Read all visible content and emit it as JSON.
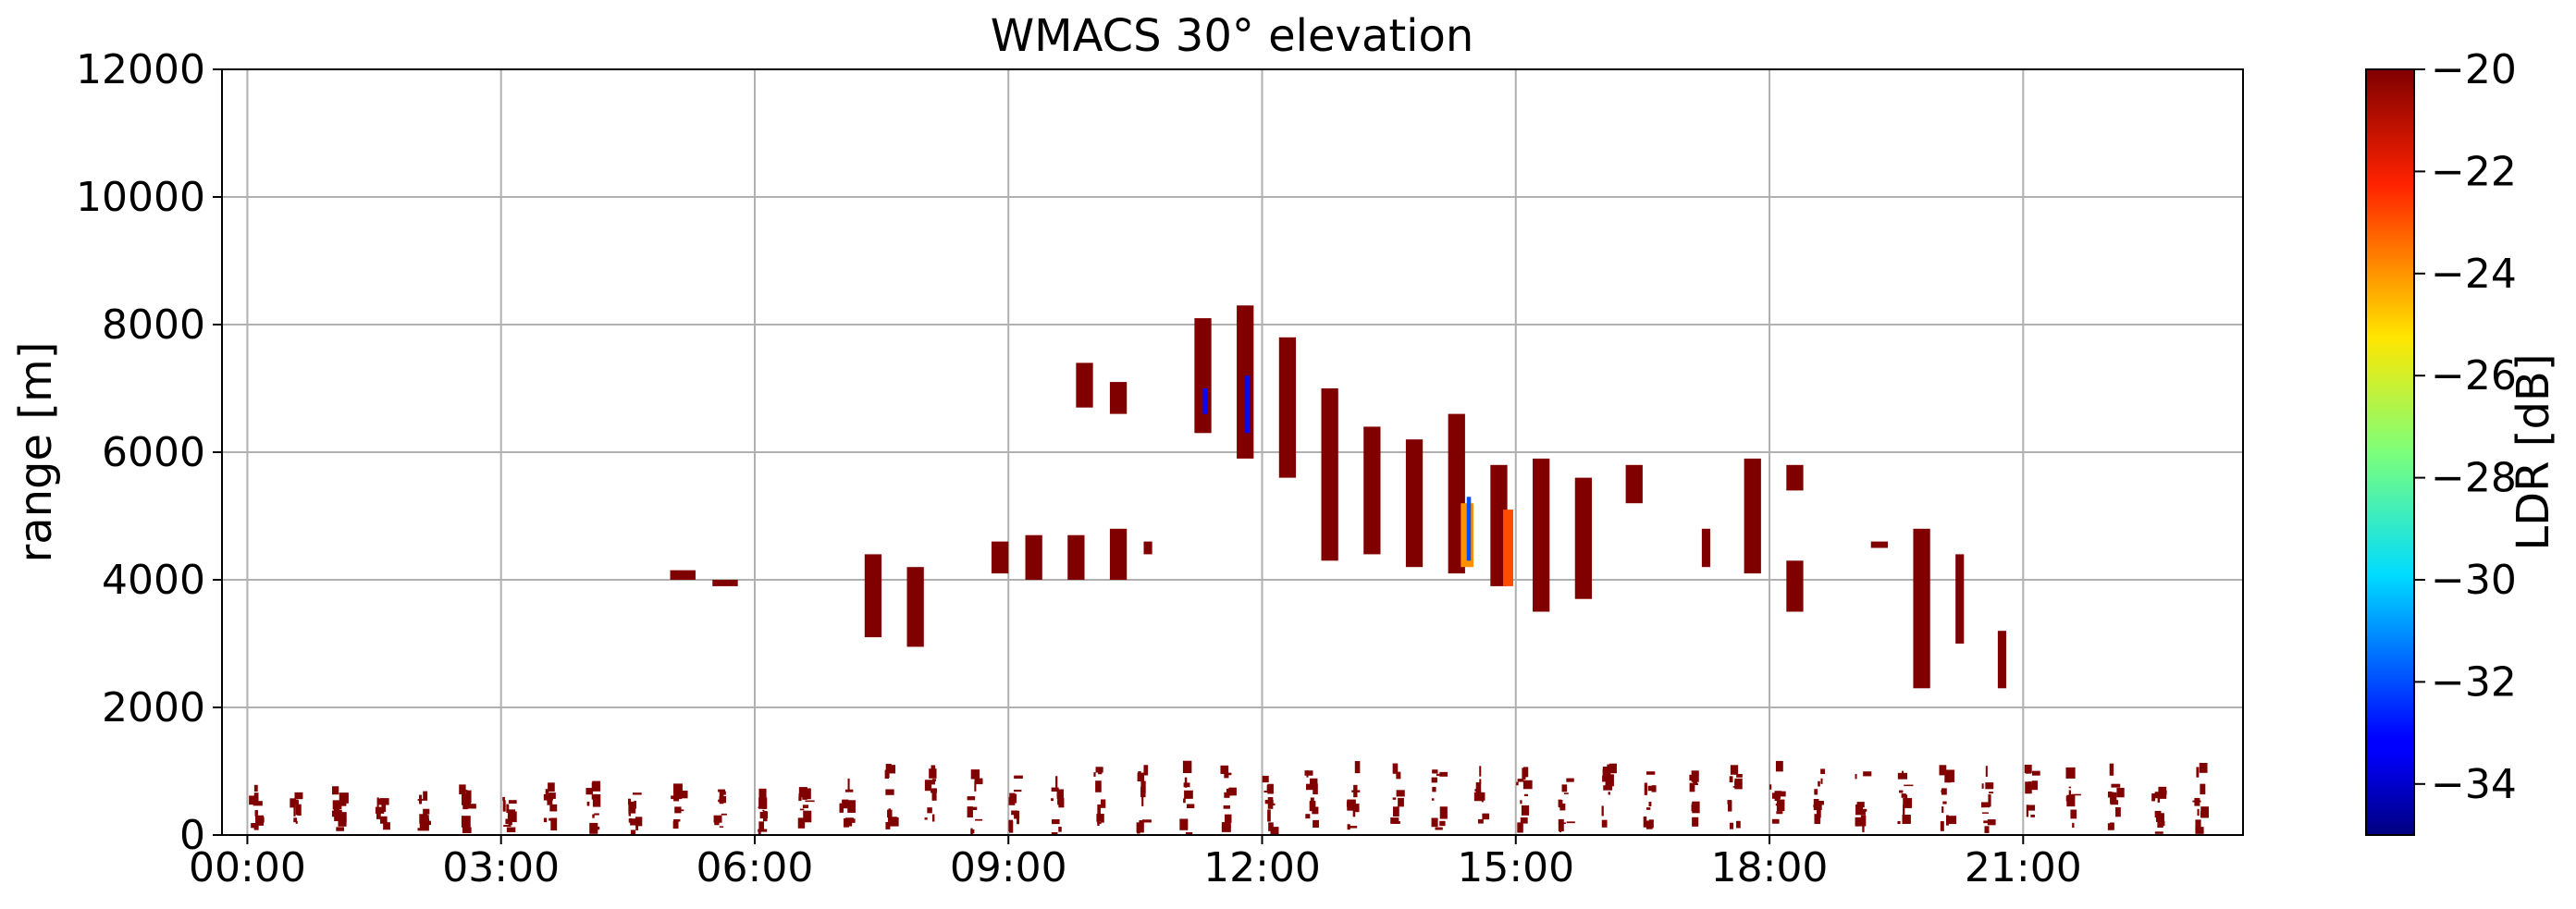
{
  "chart_data": {
    "type": "heatmap",
    "title": "WMACS 30° elevation",
    "xlabel": "",
    "ylabel": "range [m]",
    "x_ticks": [
      "00:00",
      "03:00",
      "06:00",
      "09:00",
      "12:00",
      "15:00",
      "18:00",
      "21:00"
    ],
    "x_tick_hours": [
      0,
      3,
      6,
      9,
      12,
      15,
      18,
      21
    ],
    "xlim_hours": [
      -0.3,
      23.6
    ],
    "y_ticks": [
      "0",
      "2000",
      "4000",
      "6000",
      "8000",
      "10000",
      "12000"
    ],
    "y_tick_values": [
      0,
      2000,
      4000,
      6000,
      8000,
      10000,
      12000
    ],
    "ylim": [
      0,
      12000
    ],
    "grid": true,
    "colorbar": {
      "label": "LDR [dB]",
      "colormap": "jet",
      "range": [
        -35,
        -20
      ],
      "ticks": [
        "−20",
        "−22",
        "−24",
        "−26",
        "−28",
        "−30",
        "−32",
        "−34"
      ],
      "tick_values": [
        -20,
        -22,
        -24,
        -26,
        -28,
        -30,
        -32,
        -34
      ]
    },
    "dominant_color": "#800000",
    "echo_regions": [
      {
        "t0": 5.0,
        "t1": 5.3,
        "r0": 4000,
        "r1": 4150,
        "ldr": -20
      },
      {
        "t0": 5.5,
        "t1": 5.8,
        "r0": 3900,
        "r1": 4000,
        "ldr": -20
      },
      {
        "t0": 7.3,
        "t1": 7.5,
        "r0": 3100,
        "r1": 4400,
        "ldr": -20
      },
      {
        "t0": 7.8,
        "t1": 8.0,
        "r0": 2950,
        "r1": 4200,
        "ldr": -20
      },
      {
        "t0": 8.8,
        "t1": 9.0,
        "r0": 4100,
        "r1": 4600,
        "ldr": -20
      },
      {
        "t0": 9.2,
        "t1": 9.4,
        "r0": 4000,
        "r1": 4700,
        "ldr": -20
      },
      {
        "t0": 9.7,
        "t1": 9.9,
        "r0": 4000,
        "r1": 4700,
        "ldr": -20
      },
      {
        "t0": 10.2,
        "t1": 10.4,
        "r0": 4000,
        "r1": 4800,
        "ldr": -20
      },
      {
        "t0": 10.6,
        "t1": 10.7,
        "r0": 4400,
        "r1": 4600,
        "ldr": -20
      },
      {
        "t0": 9.8,
        "t1": 10.0,
        "r0": 6700,
        "r1": 7400,
        "ldr": -20
      },
      {
        "t0": 10.2,
        "t1": 10.4,
        "r0": 6600,
        "r1": 7100,
        "ldr": -20
      },
      {
        "t0": 11.2,
        "t1": 11.4,
        "r0": 6300,
        "r1": 8100,
        "ldr": -20
      },
      {
        "t0": 11.7,
        "t1": 11.9,
        "r0": 5900,
        "r1": 8300,
        "ldr": -20
      },
      {
        "t0": 12.2,
        "t1": 12.4,
        "r0": 5600,
        "r1": 7800,
        "ldr": -20
      },
      {
        "t0": 12.7,
        "t1": 12.9,
        "r0": 4300,
        "r1": 7000,
        "ldr": -20
      },
      {
        "t0": 13.2,
        "t1": 13.4,
        "r0": 4400,
        "r1": 6400,
        "ldr": -20
      },
      {
        "t0": 13.7,
        "t1": 13.9,
        "r0": 4200,
        "r1": 6200,
        "ldr": -20
      },
      {
        "t0": 14.2,
        "t1": 14.4,
        "r0": 4100,
        "r1": 6600,
        "ldr": -20
      },
      {
        "t0": 14.7,
        "t1": 14.9,
        "r0": 3900,
        "r1": 5800,
        "ldr": -20
      },
      {
        "t0": 15.2,
        "t1": 15.4,
        "r0": 3500,
        "r1": 5900,
        "ldr": -20
      },
      {
        "t0": 15.7,
        "t1": 15.9,
        "r0": 3700,
        "r1": 5600,
        "ldr": -20
      },
      {
        "t0": 16.3,
        "t1": 16.5,
        "r0": 5200,
        "r1": 5800,
        "ldr": -20
      },
      {
        "t0": 17.2,
        "t1": 17.3,
        "r0": 4200,
        "r1": 4800,
        "ldr": -20
      },
      {
        "t0": 17.7,
        "t1": 17.9,
        "r0": 4100,
        "r1": 5900,
        "ldr": -20
      },
      {
        "t0": 18.2,
        "t1": 18.4,
        "r0": 3500,
        "r1": 4300,
        "ldr": -20
      },
      {
        "t0": 18.2,
        "t1": 18.4,
        "r0": 5400,
        "r1": 5800,
        "ldr": -20
      },
      {
        "t0": 19.2,
        "t1": 19.4,
        "r0": 4500,
        "r1": 4600,
        "ldr": -20
      },
      {
        "t0": 19.7,
        "t1": 19.9,
        "r0": 2300,
        "r1": 4800,
        "ldr": -20
      },
      {
        "t0": 20.2,
        "t1": 20.3,
        "r0": 3000,
        "r1": 4400,
        "ldr": -20
      },
      {
        "t0": 20.7,
        "t1": 20.8,
        "r0": 2300,
        "r1": 3200,
        "ldr": -20
      },
      {
        "t0": 14.35,
        "t1": 14.5,
        "r0": 4200,
        "r1": 5200,
        "ldr": -24
      },
      {
        "t0": 14.85,
        "t1": 14.97,
        "r0": 3900,
        "r1": 5100,
        "ldr": -23
      },
      {
        "t0": 11.3,
        "t1": 11.35,
        "r0": 6600,
        "r1": 7000,
        "ldr": -33
      },
      {
        "t0": 11.8,
        "t1": 11.85,
        "r0": 6300,
        "r1": 7200,
        "ldr": -33
      },
      {
        "t0": 14.42,
        "t1": 14.47,
        "r0": 4300,
        "r1": 5300,
        "ldr": -32
      }
    ],
    "low_level_clutter": {
      "r0": 0,
      "r1": 1000,
      "interval_hours": 0.5,
      "ldr": -20
    }
  }
}
